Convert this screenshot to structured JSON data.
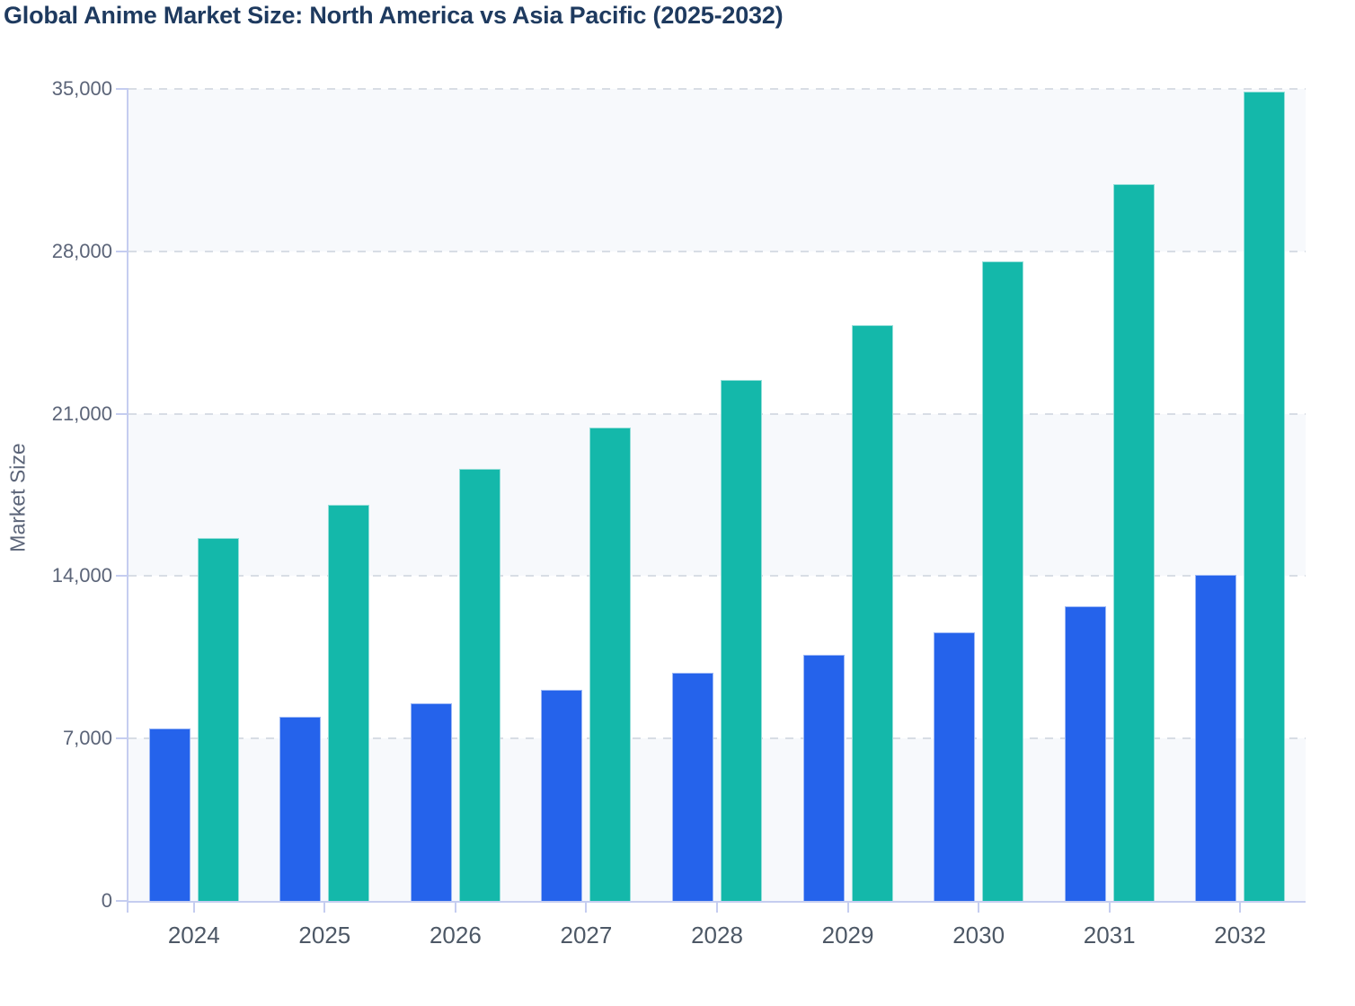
{
  "header": {
    "title": "Global Anime Market Size: North America vs Asia Pacific (2025-2032)"
  },
  "chart_data": {
    "type": "bar",
    "title": "Global Anime Market Size: North America vs Asia Pacific (2025-2032)",
    "categories": [
      "2024",
      "2025",
      "2026",
      "2027",
      "2028",
      "2029",
      "2030",
      "2031",
      "2032"
    ],
    "series": [
      {
        "name": "North America",
        "color": "#2563eb",
        "values": [
          7450,
          7950,
          8500,
          9110,
          9820,
          10610,
          11580,
          12690,
          14050
        ]
      },
      {
        "name": "Asia Pacific",
        "color": "#14b8aa",
        "values": [
          15660,
          17060,
          18630,
          20410,
          22470,
          24800,
          27570,
          30900,
          34900
        ]
      }
    ],
    "xlabel": "",
    "ylabel": "Market Size",
    "ylim": [
      0,
      35000
    ],
    "yticks": [
      0,
      7000,
      14000,
      21000,
      28000,
      35000
    ],
    "grid": true,
    "legend": "none",
    "colors": {
      "band_fill": "#f7f9fc",
      "gridline": "#d8dde5",
      "axis_line": "#c5cdf0",
      "title_text": "#1e3a5f",
      "y_tick_text": "#5b6478",
      "x_tick_text": "#4d5866"
    }
  }
}
